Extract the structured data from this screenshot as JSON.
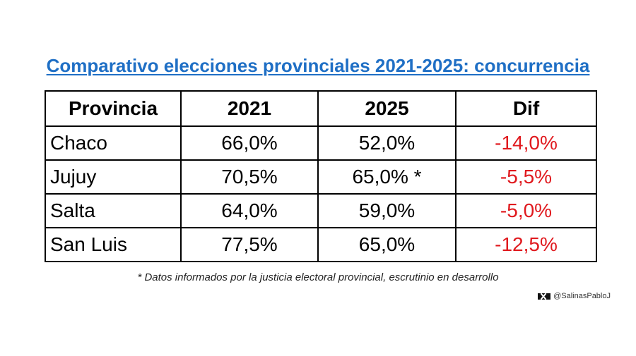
{
  "chart_data": {
    "type": "table",
    "title": "Comparativo elecciones provinciales 2021-2025: concurrencia",
    "columns": [
      "Provincia",
      "2021",
      "2025",
      "Dif"
    ],
    "rows": [
      {
        "provincia": "Chaco",
        "y2021": "66,0%",
        "y2025": "52,0%",
        "dif": "-14,0%"
      },
      {
        "provincia": "Jujuy",
        "y2021": "70,5%",
        "y2025": "65,0% *",
        "dif": "-5,5%"
      },
      {
        "provincia": "Salta",
        "y2021": "64,0%",
        "y2025": "59,0%",
        "dif": "-5,0%"
      },
      {
        "provincia": "San Luis",
        "y2021": "77,5%",
        "y2025": "65,0%",
        "dif": "-12,5%"
      }
    ],
    "footnote": "* Datos informados por la justicia electoral provincial, escrutinio en desarrollo",
    "credit": "@SalinasPabloJ"
  },
  "colors": {
    "title": "#1f6fc5",
    "negative": "#e0191e"
  },
  "icons": {
    "credit_logo": "x-logo-icon"
  }
}
